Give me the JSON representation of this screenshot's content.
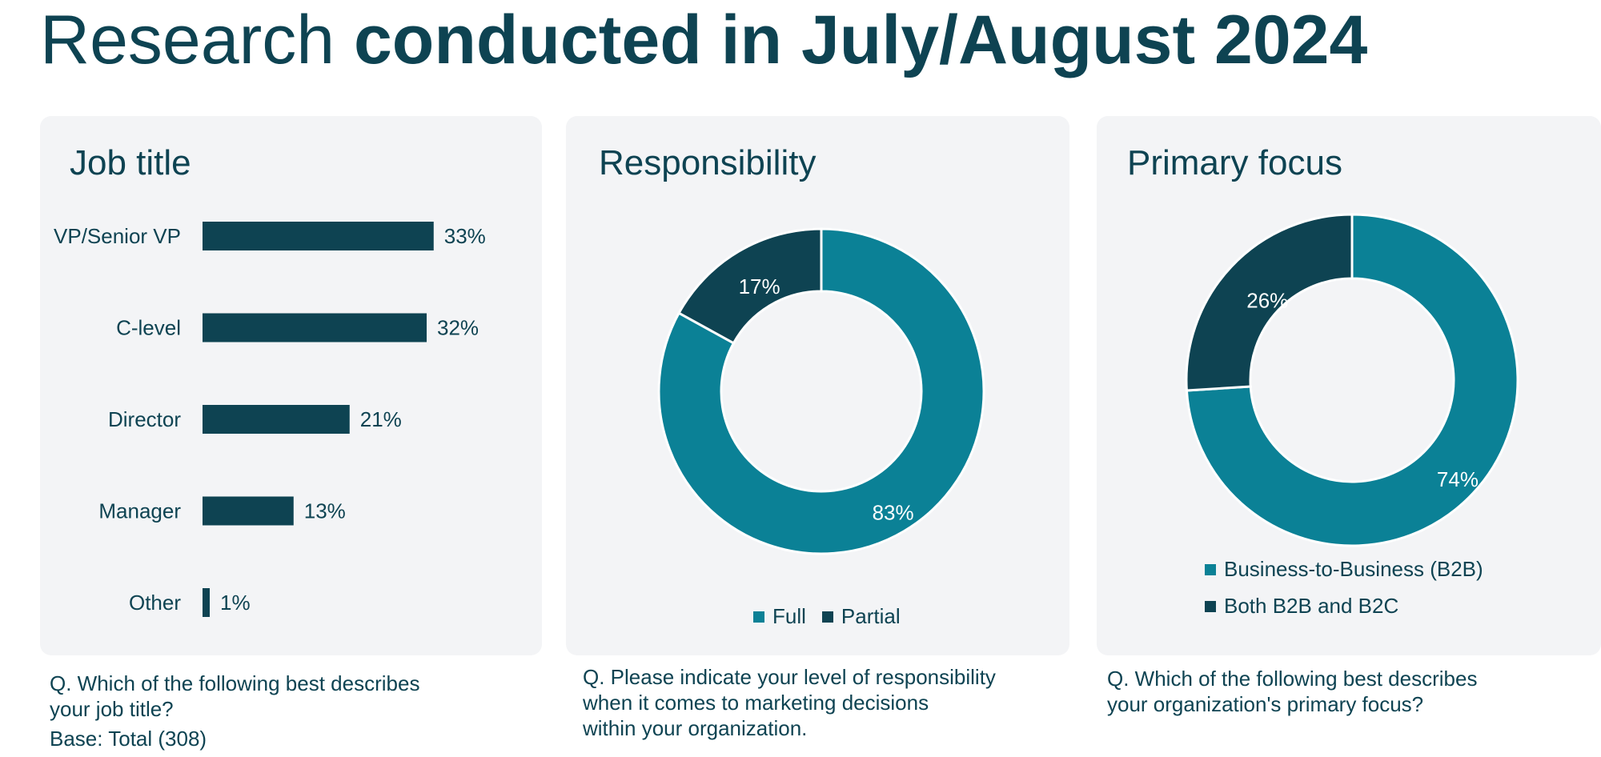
{
  "page_title": {
    "regular": "Research",
    "bold": "conducted in July/August 2024"
  },
  "colors": {
    "teal": "#0b8196",
    "dark": "#0e4352",
    "panel": "#f3f4f6"
  },
  "panels": [
    {
      "title": "Job title",
      "question": "Q. Which of the following best describes\nyour job title?",
      "base": "Base: Total (308)"
    },
    {
      "title": "Responsibility",
      "question": "Q. Please indicate your level of responsibility\nwhen it comes to marketing decisions\nwithin your organization."
    },
    {
      "title": "Primary focus",
      "question": "Q. Which of the following best describes\n your organization's primary focus?"
    }
  ],
  "chart_data": [
    {
      "type": "bar",
      "orientation": "horizontal",
      "title": "Job title",
      "categories": [
        "VP/Senior VP",
        "C-level",
        "Director",
        "Manager",
        "Other"
      ],
      "values": [
        33,
        32,
        21,
        13,
        1
      ],
      "labels": [
        "33%",
        "32%",
        "21%",
        "13%",
        "1%"
      ],
      "color": "#0e4352"
    },
    {
      "type": "pie",
      "style": "donut",
      "title": "Responsibility",
      "categories": [
        "Full",
        "Partial"
      ],
      "values": [
        83,
        17
      ],
      "labels": [
        "83%",
        "17%"
      ],
      "colors": [
        "#0b8196",
        "#0e4352"
      ],
      "legend": "bottom"
    },
    {
      "type": "pie",
      "style": "donut",
      "title": "Primary focus",
      "categories": [
        "Business-to-Business (B2B)",
        "Both B2B and B2C"
      ],
      "values": [
        74,
        26
      ],
      "labels": [
        "74%",
        "26%"
      ],
      "colors": [
        "#0b8196",
        "#0e4352"
      ],
      "legend": "bottom"
    }
  ]
}
